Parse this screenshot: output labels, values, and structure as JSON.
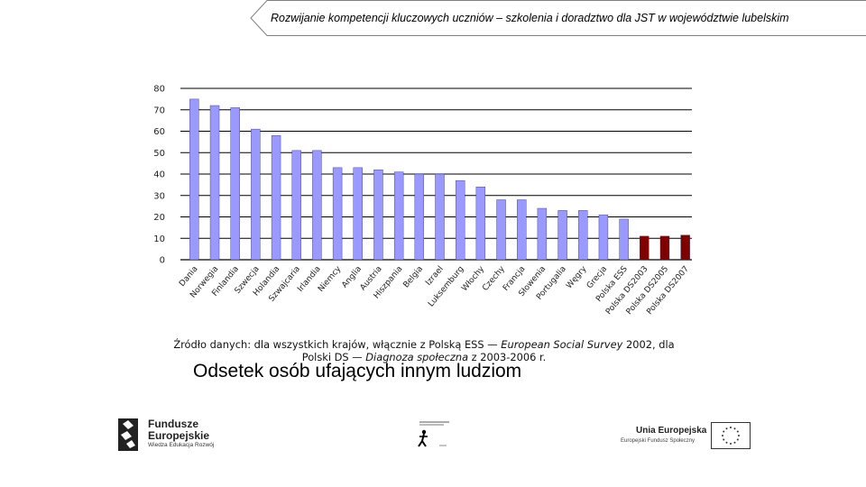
{
  "header": {
    "title": "Rozwijanie kompetencji kluczowych uczniów – szkolenia i doradztwo dla JST w województwie lubelskim"
  },
  "chart_data": {
    "type": "bar",
    "title": "Odsetek osób ufających innym ludziom",
    "source_line1_prefix": "Źródło danych: dla wszystkich krajów, włącznie z Polską ESS — ",
    "source_line1_italic": "European Social Survey",
    "source_line1_suffix": " 2002, dla",
    "source_line2_prefix": "Polski DS — ",
    "source_line2_italic": "Diagnoza społeczna",
    "source_line2_suffix": " z 2003-2006 r.",
    "xlabel": "",
    "ylabel": "",
    "ylim": [
      0,
      80
    ],
    "yticks": [
      0,
      10,
      20,
      30,
      40,
      50,
      60,
      70,
      80
    ],
    "grid": true,
    "categories": [
      "Dania",
      "Norwegia",
      "Finlandia",
      "Szwecja",
      "Holandia",
      "Szwajcaria",
      "Irlandia",
      "Niemcy",
      "Anglia",
      "Austria",
      "Hiszpania",
      "Belgia",
      "Izrael",
      "Luksemburg",
      "Włochy",
      "Czechy",
      "Francja",
      "Słowenia",
      "Portugalia",
      "Węgry",
      "Grecja",
      "Polska ESS",
      "Polska DS2003",
      "Polska DS2005",
      "Polska DS2007"
    ],
    "values": [
      75,
      72,
      71,
      61,
      58,
      51,
      51,
      43,
      43,
      42,
      41,
      40,
      40,
      37,
      34,
      28,
      28,
      24,
      23,
      23,
      21,
      19,
      11,
      11,
      11.5
    ],
    "colors": [
      "#9999ff",
      "#9999ff",
      "#9999ff",
      "#9999ff",
      "#9999ff",
      "#9999ff",
      "#9999ff",
      "#9999ff",
      "#9999ff",
      "#9999ff",
      "#9999ff",
      "#9999ff",
      "#9999ff",
      "#9999ff",
      "#9999ff",
      "#9999ff",
      "#9999ff",
      "#9999ff",
      "#9999ff",
      "#9999ff",
      "#9999ff",
      "#9999ff",
      "#800000",
      "#800000",
      "#800000"
    ]
  },
  "logos": {
    "fe_name": "Fundusze Europejskie",
    "fe_line1": "Fundusze",
    "fe_line2": "Europejskie",
    "fe_program": "Wiedza Edukacja Rozwój",
    "ue_name": "Unia Europejska",
    "ue_fund": "Europejski Fundusz Społeczny"
  },
  "icons": {
    "fe_logo": "fundusze-europejskie-logo-icon",
    "mid_logo": "walking-figure-logo-icon",
    "eu_flag": "eu-flag-icon"
  }
}
